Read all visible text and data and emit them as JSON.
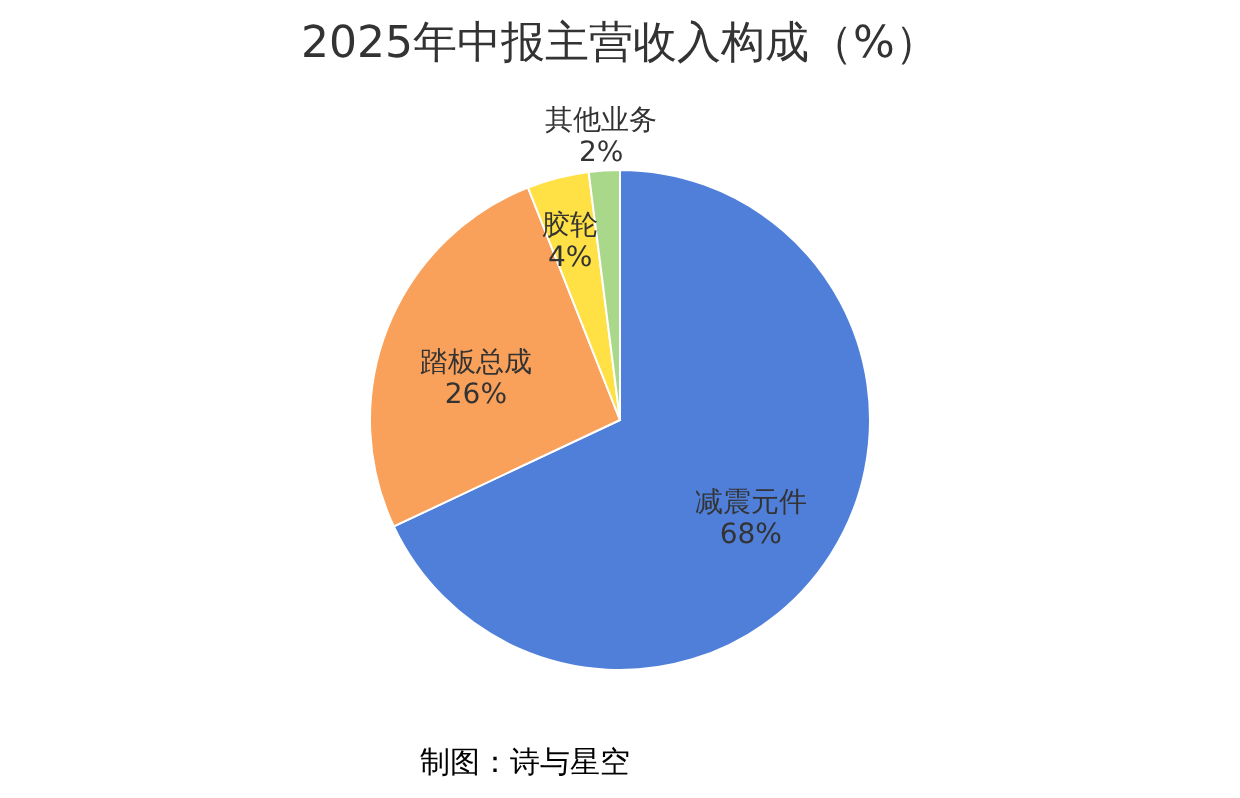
{
  "chart_data": {
    "type": "pie",
    "title": "2025年中报主营收入构成（%）",
    "categories": [
      "减震元件",
      "踏板总成",
      "胶轮",
      "其他业务"
    ],
    "values": [
      68,
      26,
      4,
      2
    ],
    "value_labels": [
      "68%",
      "26%",
      "4%",
      "2%"
    ],
    "colors": [
      "#4f7fd8",
      "#f9a05a",
      "#ffe045",
      "#a9d88a"
    ],
    "legend": false,
    "annotations": [
      "制图：诗与星空"
    ]
  }
}
